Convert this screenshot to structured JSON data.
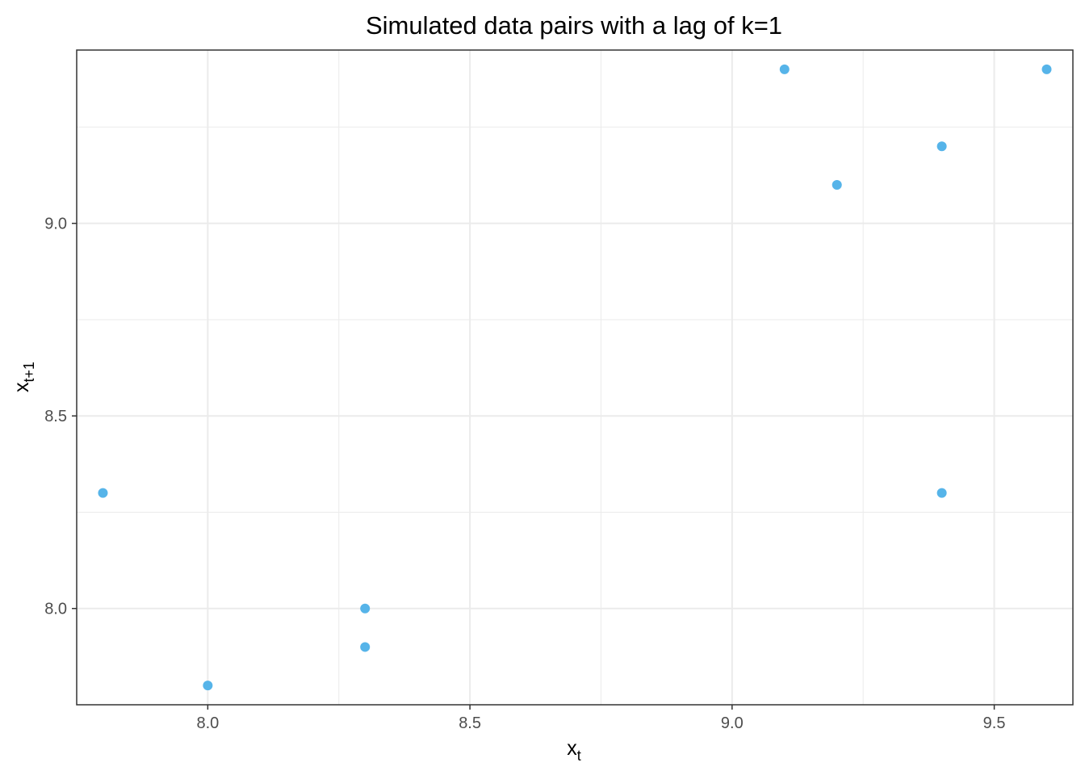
{
  "chart_data": {
    "type": "scatter",
    "title": "Simulated data pairs with a lag of k=1",
    "xlabel": {
      "main": "x",
      "sub": "t"
    },
    "ylabel": {
      "main": "x",
      "sub": "t+1"
    },
    "xlim": [
      7.75,
      9.65
    ],
    "ylim": [
      7.75,
      9.45
    ],
    "x_ticks": [
      8.0,
      8.5,
      9.0,
      9.5
    ],
    "x_tick_labels": [
      "8.0",
      "8.5",
      "9.0",
      "9.5"
    ],
    "x_minor_ticks": [
      7.75,
      8.25,
      8.75,
      9.25
    ],
    "y_ticks": [
      8.0,
      8.5,
      9.0
    ],
    "y_tick_labels": [
      "8.0",
      "8.5",
      "9.0"
    ],
    "y_minor_ticks": [
      7.75,
      8.25,
      8.75,
      9.25
    ],
    "grid": true,
    "legend": "none",
    "points": [
      {
        "x": 7.8,
        "y": 8.3
      },
      {
        "x": 8.0,
        "y": 7.8
      },
      {
        "x": 8.3,
        "y": 8.0
      },
      {
        "x": 8.3,
        "y": 7.9
      },
      {
        "x": 9.1,
        "y": 9.4
      },
      {
        "x": 9.2,
        "y": 9.1
      },
      {
        "x": 9.4,
        "y": 9.2
      },
      {
        "x": 9.4,
        "y": 8.3
      },
      {
        "x": 9.6,
        "y": 9.4
      }
    ],
    "colors": {
      "point": "#56b4e9",
      "grid": "#ebebeb",
      "panel_border": "#333333",
      "tick_label": "#4d4d4d",
      "text": "#000000"
    }
  }
}
